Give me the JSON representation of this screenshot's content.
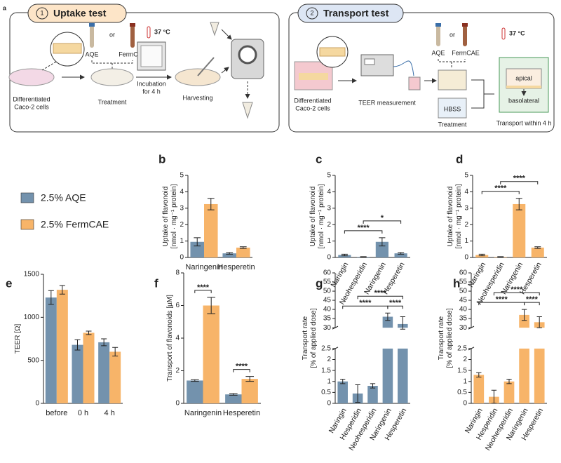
{
  "diagram": {
    "panel": "a",
    "uptake": {
      "number": "1",
      "title": "Uptake test",
      "cells": [
        "Differentiated",
        "Caco-2 cells"
      ],
      "aqe": "AQE",
      "or": "or",
      "ferm": "FermCAE",
      "temp": "37 °C",
      "treatment": "Treatment",
      "incubation": [
        "Incubation",
        "for 4 h"
      ],
      "harvesting": "Harvesting"
    },
    "transport": {
      "number": "2",
      "title": "Transport test",
      "cells": [
        "Differentiated",
        "Caco-2 cells"
      ],
      "teer": "TEER measurement",
      "aqe": "AQE",
      "or": "or",
      "ferm": "FermCAE",
      "temp": "37 °C",
      "hbss": "HBSS",
      "treatment": "Treatment",
      "apical": "apical",
      "basolateral": "basolateral",
      "within": "Transport within 4 h"
    }
  },
  "chart_data": [
    {
      "panel": "b",
      "type": "bar",
      "ylabel": [
        "Uptake of flavonoid",
        "[nmol · mg⁻¹ protein]"
      ],
      "categories": [
        "Naringenin",
        "Hesperetin"
      ],
      "series": [
        {
          "name": "2.5% AQE",
          "color": "#7392ad",
          "values": [
            0.95,
            0.25
          ],
          "errors": [
            0.25,
            0.05
          ]
        },
        {
          "name": "2.5% FermCAE",
          "color": "#f7b469",
          "values": [
            3.25,
            0.6
          ],
          "errors": [
            0.35,
            0.05
          ]
        }
      ],
      "ylim": [
        0,
        5
      ],
      "yticks": [
        0,
        1,
        2,
        3,
        4,
        5
      ]
    },
    {
      "panel": "c",
      "type": "bar",
      "ylabel": [
        "Uptake of flavonoid",
        "[nmol · mg⁻¹ protein]"
      ],
      "categories": [
        "Naringin",
        "Neohesperidin",
        "Naringenin",
        "Hesperetin"
      ],
      "color": "#7392ad",
      "values": [
        0.15,
        0.03,
        0.95,
        0.25
      ],
      "errors": [
        0.05,
        0.02,
        0.25,
        0.05
      ],
      "ylim": [
        0,
        5
      ],
      "yticks": [
        0,
        1,
        2,
        3,
        4,
        5
      ],
      "brackets": [
        {
          "pair": [
            "Naringin",
            "Naringenin"
          ],
          "label": "****"
        },
        {
          "pair": [
            "Neohesperidin",
            "Hesperetin"
          ],
          "label": "*"
        }
      ]
    },
    {
      "panel": "d",
      "type": "bar",
      "ylabel": [
        "Uptake of flavonoid",
        "[nmol · mg⁻¹ protein]"
      ],
      "categories": [
        "Naringin",
        "Neohesperidin",
        "Naringenin",
        "Hesperetin"
      ],
      "color": "#f7b469",
      "values": [
        0.15,
        0.03,
        3.25,
        0.6
      ],
      "errors": [
        0.05,
        0.02,
        0.35,
        0.05
      ],
      "ylim": [
        0,
        5
      ],
      "yticks": [
        0,
        1,
        2,
        3,
        4,
        5
      ],
      "brackets": [
        {
          "pair": [
            "Naringin",
            "Naringenin"
          ],
          "label": "****"
        },
        {
          "pair": [
            "Neohesperidin",
            "Hesperetin"
          ],
          "label": "****"
        }
      ]
    },
    {
      "panel": "e",
      "type": "bar",
      "ylabel": [
        "TEER [Ω]"
      ],
      "categories": [
        "before",
        "0 h",
        "4 h"
      ],
      "series": [
        {
          "name": "2.5% AQE",
          "color": "#7392ad",
          "values": [
            1230,
            680,
            710
          ],
          "errors": [
            80,
            60,
            40
          ]
        },
        {
          "name": "2.5% FermCAE",
          "color": "#f7b469",
          "values": [
            1320,
            820,
            600
          ],
          "errors": [
            50,
            20,
            50
          ]
        }
      ],
      "ylim": [
        0,
        1500
      ],
      "yticks": [
        0,
        500,
        1000,
        1500
      ]
    },
    {
      "panel": "f",
      "type": "bar",
      "ylabel": [
        "Transport of flavonoids [µM]"
      ],
      "categories": [
        "Naringenin",
        "Hesperetin"
      ],
      "series": [
        {
          "name": "2.5% AQE",
          "color": "#7392ad",
          "values": [
            1.4,
            0.55
          ],
          "errors": [
            0.05,
            0.05
          ]
        },
        {
          "name": "2.5% FermCAE",
          "color": "#f7b469",
          "values": [
            6.0,
            1.5
          ],
          "errors": [
            0.5,
            0.15
          ]
        }
      ],
      "ylim": [
        0,
        8
      ],
      "yticks": [
        0,
        2,
        4,
        6,
        8
      ],
      "brackets": [
        {
          "category": "Naringenin",
          "pair": [
            "2.5% AQE",
            "2.5% FermCAE"
          ],
          "label": "****"
        },
        {
          "category": "Hesperetin",
          "pair": [
            "2.5% AQE",
            "2.5% FermCAE"
          ],
          "label": "****"
        }
      ]
    },
    {
      "panel": "g",
      "type": "bar",
      "ylabel": [
        "Transport rate",
        "[% of applied dose]"
      ],
      "categories": [
        "Naringin",
        "Hesperidin",
        "Neohesperidin",
        "Naringenin",
        "Hesperetin"
      ],
      "color": "#7392ad",
      "values": [
        1.0,
        0.45,
        0.8,
        36,
        32
      ],
      "errors": [
        0.1,
        0.4,
        0.1,
        2,
        4
      ],
      "ylim": [
        0,
        60
      ],
      "ybreak": [
        2.5,
        30
      ],
      "yticks": [
        0,
        0.5,
        1,
        1.5,
        2,
        2.5,
        30,
        35,
        40,
        45,
        50,
        55,
        60
      ],
      "brackets": [
        {
          "pair": [
            "Naringenin",
            "Hesperetin"
          ],
          "label": "****"
        },
        {
          "pair": [
            "Naringin",
            "Naringenin"
          ],
          "label": "****"
        },
        {
          "pair": [
            "Hesperidin",
            "Hesperetin"
          ],
          "label": "****"
        }
      ]
    },
    {
      "panel": "h",
      "type": "bar",
      "ylabel": [
        "Transport rate",
        "[% of applied dose]"
      ],
      "categories": [
        "Naringin",
        "Hesperidin",
        "Neohesperidin",
        "Naringenin",
        "Hesperetin"
      ],
      "color": "#f7b469",
      "values": [
        1.3,
        0.3,
        1.0,
        37,
        33
      ],
      "errors": [
        0.1,
        0.3,
        0.1,
        3,
        3
      ],
      "ylim": [
        0,
        60
      ],
      "ybreak": [
        2.5,
        30
      ],
      "yticks": [
        0,
        0.5,
        1,
        1.5,
        2,
        2.5,
        30,
        35,
        40,
        45,
        50,
        55,
        60
      ],
      "brackets": [
        {
          "pair": [
            "Naringenin",
            "Hesperetin"
          ],
          "label": "****"
        },
        {
          "pair": [
            "Naringin",
            "Naringenin"
          ],
          "label": "****"
        },
        {
          "pair": [
            "Hesperidin",
            "Hesperetin"
          ],
          "label": "****"
        }
      ]
    }
  ]
}
